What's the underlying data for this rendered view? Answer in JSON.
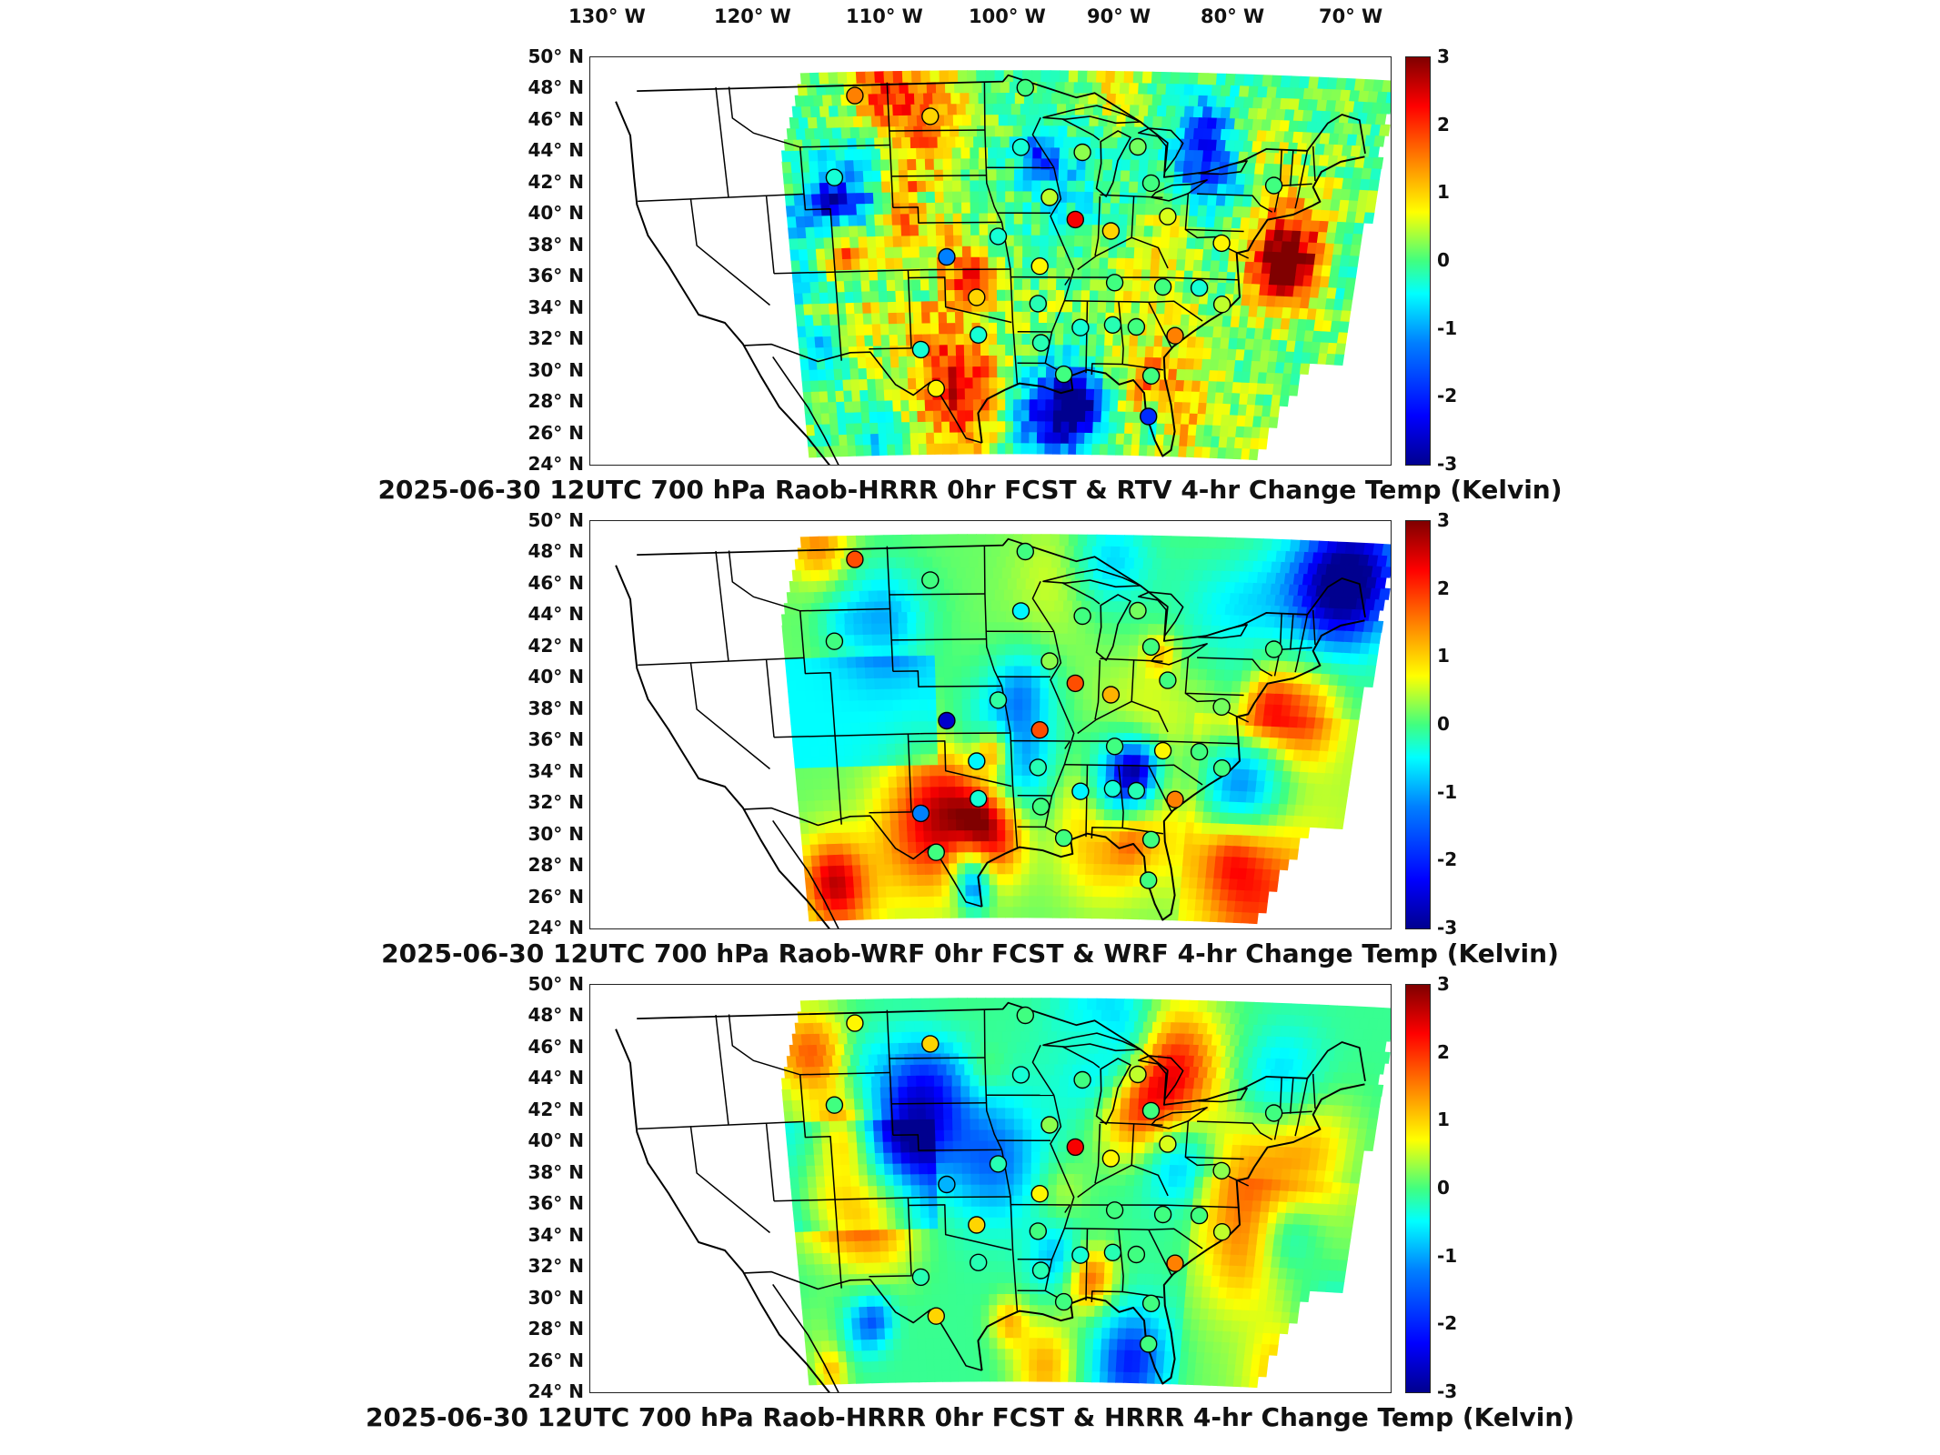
{
  "longitude_labels": [
    "130° W",
    "120° W",
    "110° W",
    "100° W",
    "90° W",
    "80° W",
    "70° W"
  ],
  "latitude_labels": [
    "50° N",
    "48° N",
    "46° N",
    "44° N",
    "42° N",
    "40° N",
    "38° N",
    "36° N",
    "34° N",
    "32° N",
    "30° N",
    "28° N",
    "26° N",
    "24° N"
  ],
  "colorbar": {
    "unit": "Kelvin",
    "min": -3,
    "max": 3,
    "ticks": [
      "3",
      "2",
      "1",
      "0",
      "-1",
      "-2",
      "-3"
    ],
    "colors": [
      "#00008f",
      "#0000ff",
      "#0080ff",
      "#00ffff",
      "#40ff80",
      "#ffff00",
      "#ff8000",
      "#ff0000",
      "#800000"
    ]
  },
  "panels": [
    {
      "id": "rtv",
      "title": "2025-06-30 12UTC 700 hPa Raob-HRRR 0hr FCST & RTV 4-hr Change Temp (Kelvin)",
      "field_bias": 0.0,
      "stations": [
        {
          "lon": -106.5,
          "lat": 48.2,
          "value": 1.5
        },
        {
          "lon": -100.8,
          "lat": 46.8,
          "value": 1.0
        },
        {
          "lon": -93.5,
          "lat": 48.6,
          "value": 0.0
        },
        {
          "lon": -93.8,
          "lat": 44.8,
          "value": -0.5
        },
        {
          "lon": -89.0,
          "lat": 44.5,
          "value": 0.3
        },
        {
          "lon": -84.7,
          "lat": 44.9,
          "value": 0.2
        },
        {
          "lon": -83.5,
          "lat": 42.6,
          "value": 0.0
        },
        {
          "lon": -73.8,
          "lat": 42.7,
          "value": 0.0
        },
        {
          "lon": -108.5,
          "lat": 43.0,
          "value": -0.5
        },
        {
          "lon": -91.5,
          "lat": 41.6,
          "value": 0.5
        },
        {
          "lon": -89.4,
          "lat": 40.2,
          "value": 2.3
        },
        {
          "lon": -86.5,
          "lat": 39.5,
          "value": 1.0
        },
        {
          "lon": -82.0,
          "lat": 40.5,
          "value": 0.6
        },
        {
          "lon": -77.5,
          "lat": 38.9,
          "value": 0.8
        },
        {
          "lon": -99.8,
          "lat": 37.8,
          "value": -1.5
        },
        {
          "lon": -95.6,
          "lat": 39.1,
          "value": -0.5
        },
        {
          "lon": -92.2,
          "lat": 37.2,
          "value": 0.8
        },
        {
          "lon": -97.4,
          "lat": 35.2,
          "value": 1.0
        },
        {
          "lon": -92.3,
          "lat": 34.8,
          "value": -0.3
        },
        {
          "lon": -86.0,
          "lat": 36.2,
          "value": 0.0
        },
        {
          "lon": -82.0,
          "lat": 36.0,
          "value": 0.0
        },
        {
          "lon": -79.0,
          "lat": 36.0,
          "value": -0.5
        },
        {
          "lon": -77.0,
          "lat": 35.0,
          "value": 0.5
        },
        {
          "lon": -80.7,
          "lat": 32.9,
          "value": 1.5
        },
        {
          "lon": -86.0,
          "lat": 33.5,
          "value": -0.3
        },
        {
          "lon": -88.7,
          "lat": 33.3,
          "value": -0.5
        },
        {
          "lon": -84.0,
          "lat": 33.4,
          "value": 0.0
        },
        {
          "lon": -92.0,
          "lat": 32.3,
          "value": -0.3
        },
        {
          "lon": -97.3,
          "lat": 32.8,
          "value": -0.5
        },
        {
          "lon": -102.2,
          "lat": 31.9,
          "value": -0.5
        },
        {
          "lon": -101.0,
          "lat": 29.4,
          "value": 0.8
        },
        {
          "lon": -90.0,
          "lat": 30.3,
          "value": 0.0
        },
        {
          "lon": -82.5,
          "lat": 30.3,
          "value": 0.0
        },
        {
          "lon": -82.5,
          "lat": 27.7,
          "value": -2.0
        }
      ]
    },
    {
      "id": "wrf",
      "title": "2025-06-30 12UTC 700 hPa Raob-WRF 0hr FCST & WRF 4-hr Change Temp (Kelvin)",
      "field_bias": 0.15,
      "stations": [
        {
          "lon": -106.5,
          "lat": 48.2,
          "value": 1.8
        },
        {
          "lon": -100.8,
          "lat": 46.8,
          "value": 0.0
        },
        {
          "lon": -93.5,
          "lat": 48.6,
          "value": 0.0
        },
        {
          "lon": -93.8,
          "lat": 44.8,
          "value": -0.8
        },
        {
          "lon": -89.0,
          "lat": 44.5,
          "value": 0.0
        },
        {
          "lon": -84.7,
          "lat": 44.9,
          "value": 0.2
        },
        {
          "lon": -83.5,
          "lat": 42.6,
          "value": 0.0
        },
        {
          "lon": -73.8,
          "lat": 42.7,
          "value": 0.0
        },
        {
          "lon": -108.5,
          "lat": 43.0,
          "value": 0.0
        },
        {
          "lon": -91.5,
          "lat": 41.6,
          "value": 0.3
        },
        {
          "lon": -89.4,
          "lat": 40.2,
          "value": 1.8
        },
        {
          "lon": -86.5,
          "lat": 39.5,
          "value": 1.2
        },
        {
          "lon": -82.0,
          "lat": 40.5,
          "value": 0.0
        },
        {
          "lon": -77.5,
          "lat": 38.9,
          "value": 0.2
        },
        {
          "lon": -99.8,
          "lat": 37.8,
          "value": -2.6
        },
        {
          "lon": -95.6,
          "lat": 39.1,
          "value": -0.2
        },
        {
          "lon": -92.2,
          "lat": 37.2,
          "value": 1.8
        },
        {
          "lon": -97.4,
          "lat": 35.2,
          "value": -0.8
        },
        {
          "lon": -92.3,
          "lat": 34.8,
          "value": -0.3
        },
        {
          "lon": -86.0,
          "lat": 36.2,
          "value": 0.0
        },
        {
          "lon": -82.0,
          "lat": 36.0,
          "value": 0.8
        },
        {
          "lon": -79.0,
          "lat": 36.0,
          "value": 0.0
        },
        {
          "lon": -77.0,
          "lat": 35.0,
          "value": 0.0
        },
        {
          "lon": -80.7,
          "lat": 32.9,
          "value": 1.5
        },
        {
          "lon": -86.0,
          "lat": 33.5,
          "value": -0.5
        },
        {
          "lon": -88.7,
          "lat": 33.3,
          "value": -0.8
        },
        {
          "lon": -84.0,
          "lat": 33.4,
          "value": -0.3
        },
        {
          "lon": -92.0,
          "lat": 32.3,
          "value": 0.0
        },
        {
          "lon": -97.3,
          "lat": 32.8,
          "value": -0.5
        },
        {
          "lon": -102.2,
          "lat": 31.9,
          "value": -1.5
        },
        {
          "lon": -101.0,
          "lat": 29.4,
          "value": 0.0
        },
        {
          "lon": -90.0,
          "lat": 30.3,
          "value": 0.0
        },
        {
          "lon": -82.5,
          "lat": 30.3,
          "value": 0.0
        },
        {
          "lon": -82.5,
          "lat": 27.7,
          "value": 0.0
        }
      ]
    },
    {
      "id": "hrrr",
      "title": "2025-06-30 12UTC 700 hPa Raob-HRRR 0hr FCST & HRRR 4-hr Change Temp (Kelvin)",
      "field_bias": -0.1,
      "stations": [
        {
          "lon": -106.5,
          "lat": 48.2,
          "value": 0.8
        },
        {
          "lon": -100.8,
          "lat": 46.8,
          "value": 1.0
        },
        {
          "lon": -93.5,
          "lat": 48.6,
          "value": 0.0
        },
        {
          "lon": -93.8,
          "lat": 44.8,
          "value": -0.5
        },
        {
          "lon": -89.0,
          "lat": 44.5,
          "value": 0.0
        },
        {
          "lon": -84.7,
          "lat": 44.9,
          "value": 0.5
        },
        {
          "lon": -83.5,
          "lat": 42.6,
          "value": 0.0
        },
        {
          "lon": -73.8,
          "lat": 42.7,
          "value": 0.0
        },
        {
          "lon": -108.5,
          "lat": 43.0,
          "value": 0.0
        },
        {
          "lon": -91.5,
          "lat": 41.6,
          "value": 0.3
        },
        {
          "lon": -89.4,
          "lat": 40.2,
          "value": 2.3
        },
        {
          "lon": -86.5,
          "lat": 39.5,
          "value": 0.8
        },
        {
          "lon": -82.0,
          "lat": 40.5,
          "value": 0.6
        },
        {
          "lon": -77.5,
          "lat": 38.9,
          "value": 0.3
        },
        {
          "lon": -99.8,
          "lat": 37.8,
          "value": -1.2
        },
        {
          "lon": -95.6,
          "lat": 39.1,
          "value": -0.3
        },
        {
          "lon": -92.2,
          "lat": 37.2,
          "value": 0.8
        },
        {
          "lon": -97.4,
          "lat": 35.2,
          "value": 1.0
        },
        {
          "lon": -92.3,
          "lat": 34.8,
          "value": 0.0
        },
        {
          "lon": -86.0,
          "lat": 36.2,
          "value": 0.0
        },
        {
          "lon": -82.0,
          "lat": 36.0,
          "value": 0.0
        },
        {
          "lon": -79.0,
          "lat": 36.0,
          "value": 0.0
        },
        {
          "lon": -77.0,
          "lat": 35.0,
          "value": 0.5
        },
        {
          "lon": -80.7,
          "lat": 32.9,
          "value": 1.5
        },
        {
          "lon": -86.0,
          "lat": 33.5,
          "value": -0.3
        },
        {
          "lon": -88.7,
          "lat": 33.3,
          "value": -0.5
        },
        {
          "lon": -84.0,
          "lat": 33.4,
          "value": 0.0
        },
        {
          "lon": -92.0,
          "lat": 32.3,
          "value": -0.3
        },
        {
          "lon": -97.3,
          "lat": 32.8,
          "value": -0.3
        },
        {
          "lon": -102.2,
          "lat": 31.9,
          "value": -0.3
        },
        {
          "lon": -101.0,
          "lat": 29.4,
          "value": 1.0
        },
        {
          "lon": -90.0,
          "lat": 30.3,
          "value": 0.0
        },
        {
          "lon": -82.5,
          "lat": 30.3,
          "value": 0.0
        },
        {
          "lon": -82.5,
          "lat": 27.7,
          "value": 0.0
        }
      ]
    }
  ]
}
